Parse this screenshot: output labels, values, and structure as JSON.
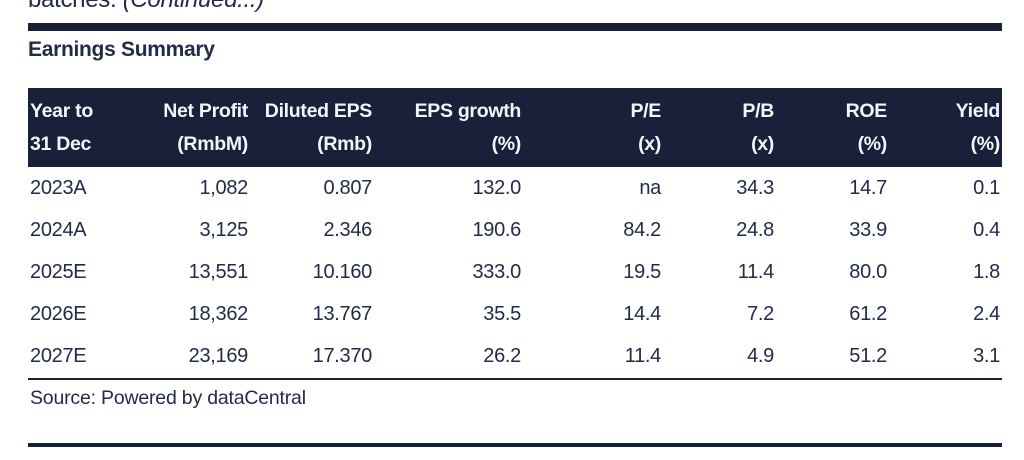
{
  "top": {
    "regular": "batches. ",
    "italic": "(Continued...)"
  },
  "section": {
    "title": "Earnings Summary"
  },
  "source": {
    "text": "Source: Powered by dataCentral"
  },
  "colors": {
    "navy": "#18203a",
    "text": "#222b47",
    "header_text": "#f4f5f7"
  },
  "chart_data": {
    "type": "table",
    "title": "Earnings Summary",
    "columns": [
      {
        "l1": "Year to",
        "l2": "31 Dec"
      },
      {
        "l1": "Net Profit",
        "l2": "(RmbM)"
      },
      {
        "l1": "Diluted EPS",
        "l2": "(Rmb)"
      },
      {
        "l1": "EPS growth",
        "l2": "(%)"
      },
      {
        "l1": "P/E",
        "l2": "(x)"
      },
      {
        "l1": "P/B",
        "l2": "(x)"
      },
      {
        "l1": "ROE",
        "l2": "(%)"
      },
      {
        "l1": "Yield",
        "l2": "(%)"
      }
    ],
    "rows": [
      [
        "2023A",
        "1,082",
        "0.807",
        "132.0",
        "na",
        "34.3",
        "14.7",
        "0.1"
      ],
      [
        "2024A",
        "3,125",
        "2.346",
        "190.6",
        "84.2",
        "24.8",
        "33.9",
        "0.4"
      ],
      [
        "2025E",
        "13,551",
        "10.160",
        "333.0",
        "19.5",
        "11.4",
        "80.0",
        "1.8"
      ],
      [
        "2026E",
        "18,362",
        "13.767",
        "35.5",
        "14.4",
        "7.2",
        "61.2",
        "2.4"
      ],
      [
        "2027E",
        "23,169",
        "17.370",
        "26.2",
        "11.4",
        "4.9",
        "51.2",
        "3.1"
      ]
    ]
  }
}
